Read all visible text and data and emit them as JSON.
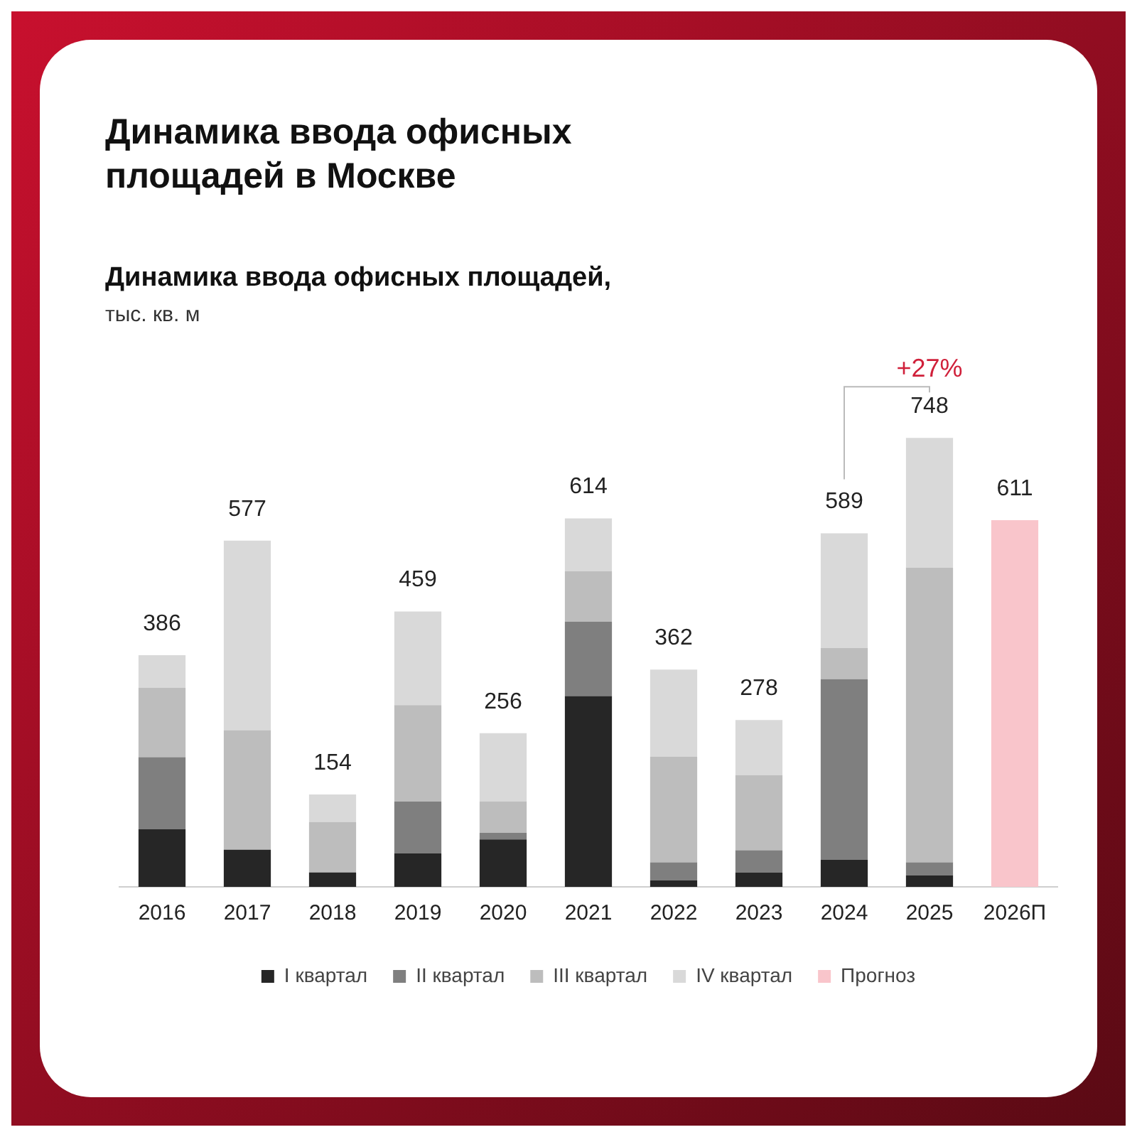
{
  "chart_data": {
    "type": "bar",
    "title": "Динамика ввода офисных площадей в Москве",
    "subtitle": "Динамика ввода офисных площадей,",
    "categories": [
      "2016",
      "2017",
      "2018",
      "2019",
      "2020",
      "2021",
      "2022",
      "2023",
      "2024",
      "2025",
      "2026П"
    ],
    "stacked": true,
    "series": [
      {
        "name": "I квартал",
        "color": "#262626",
        "values": [
          96,
          62,
          24,
          56,
          79,
          318,
          11,
          24,
          45,
          19,
          null
        ]
      },
      {
        "name": "II квартал",
        "color": "#7f7f7f",
        "values": [
          120,
          0,
          0,
          86,
          11,
          124,
          30,
          37,
          301,
          22,
          null
        ]
      },
      {
        "name": "III квартал",
        "color": "#bdbdbd",
        "values": [
          116,
          199,
          84,
          161,
          52,
          84,
          176,
          125,
          52,
          491,
          null
        ]
      },
      {
        "name": "IV квартал",
        "color": "#d9d9d9",
        "values": [
          54,
          316,
          46,
          156,
          114,
          88,
          145,
          92,
          191,
          216,
          null
        ]
      },
      {
        "name": "Прогноз",
        "color": "#f9c5cb",
        "values": [
          null,
          null,
          null,
          null,
          null,
          null,
          null,
          null,
          null,
          null,
          611
        ],
        "value_labels": [
          null,
          null,
          null,
          null,
          null,
          null,
          null,
          null,
          null,
          null,
          "611"
        ]
      }
    ],
    "totals": [
      "386",
      "577",
      "154",
      "459",
      "256",
      "614",
      "362",
      "278",
      "589",
      "748",
      null
    ],
    "annotations": [
      "тыс. кв. м",
      {
        "text": "+27%",
        "x": "2025",
        "y": 748
      }
    ],
    "legend": "bottom",
    "grid": false,
    "tick_labels": "x"
  }
}
